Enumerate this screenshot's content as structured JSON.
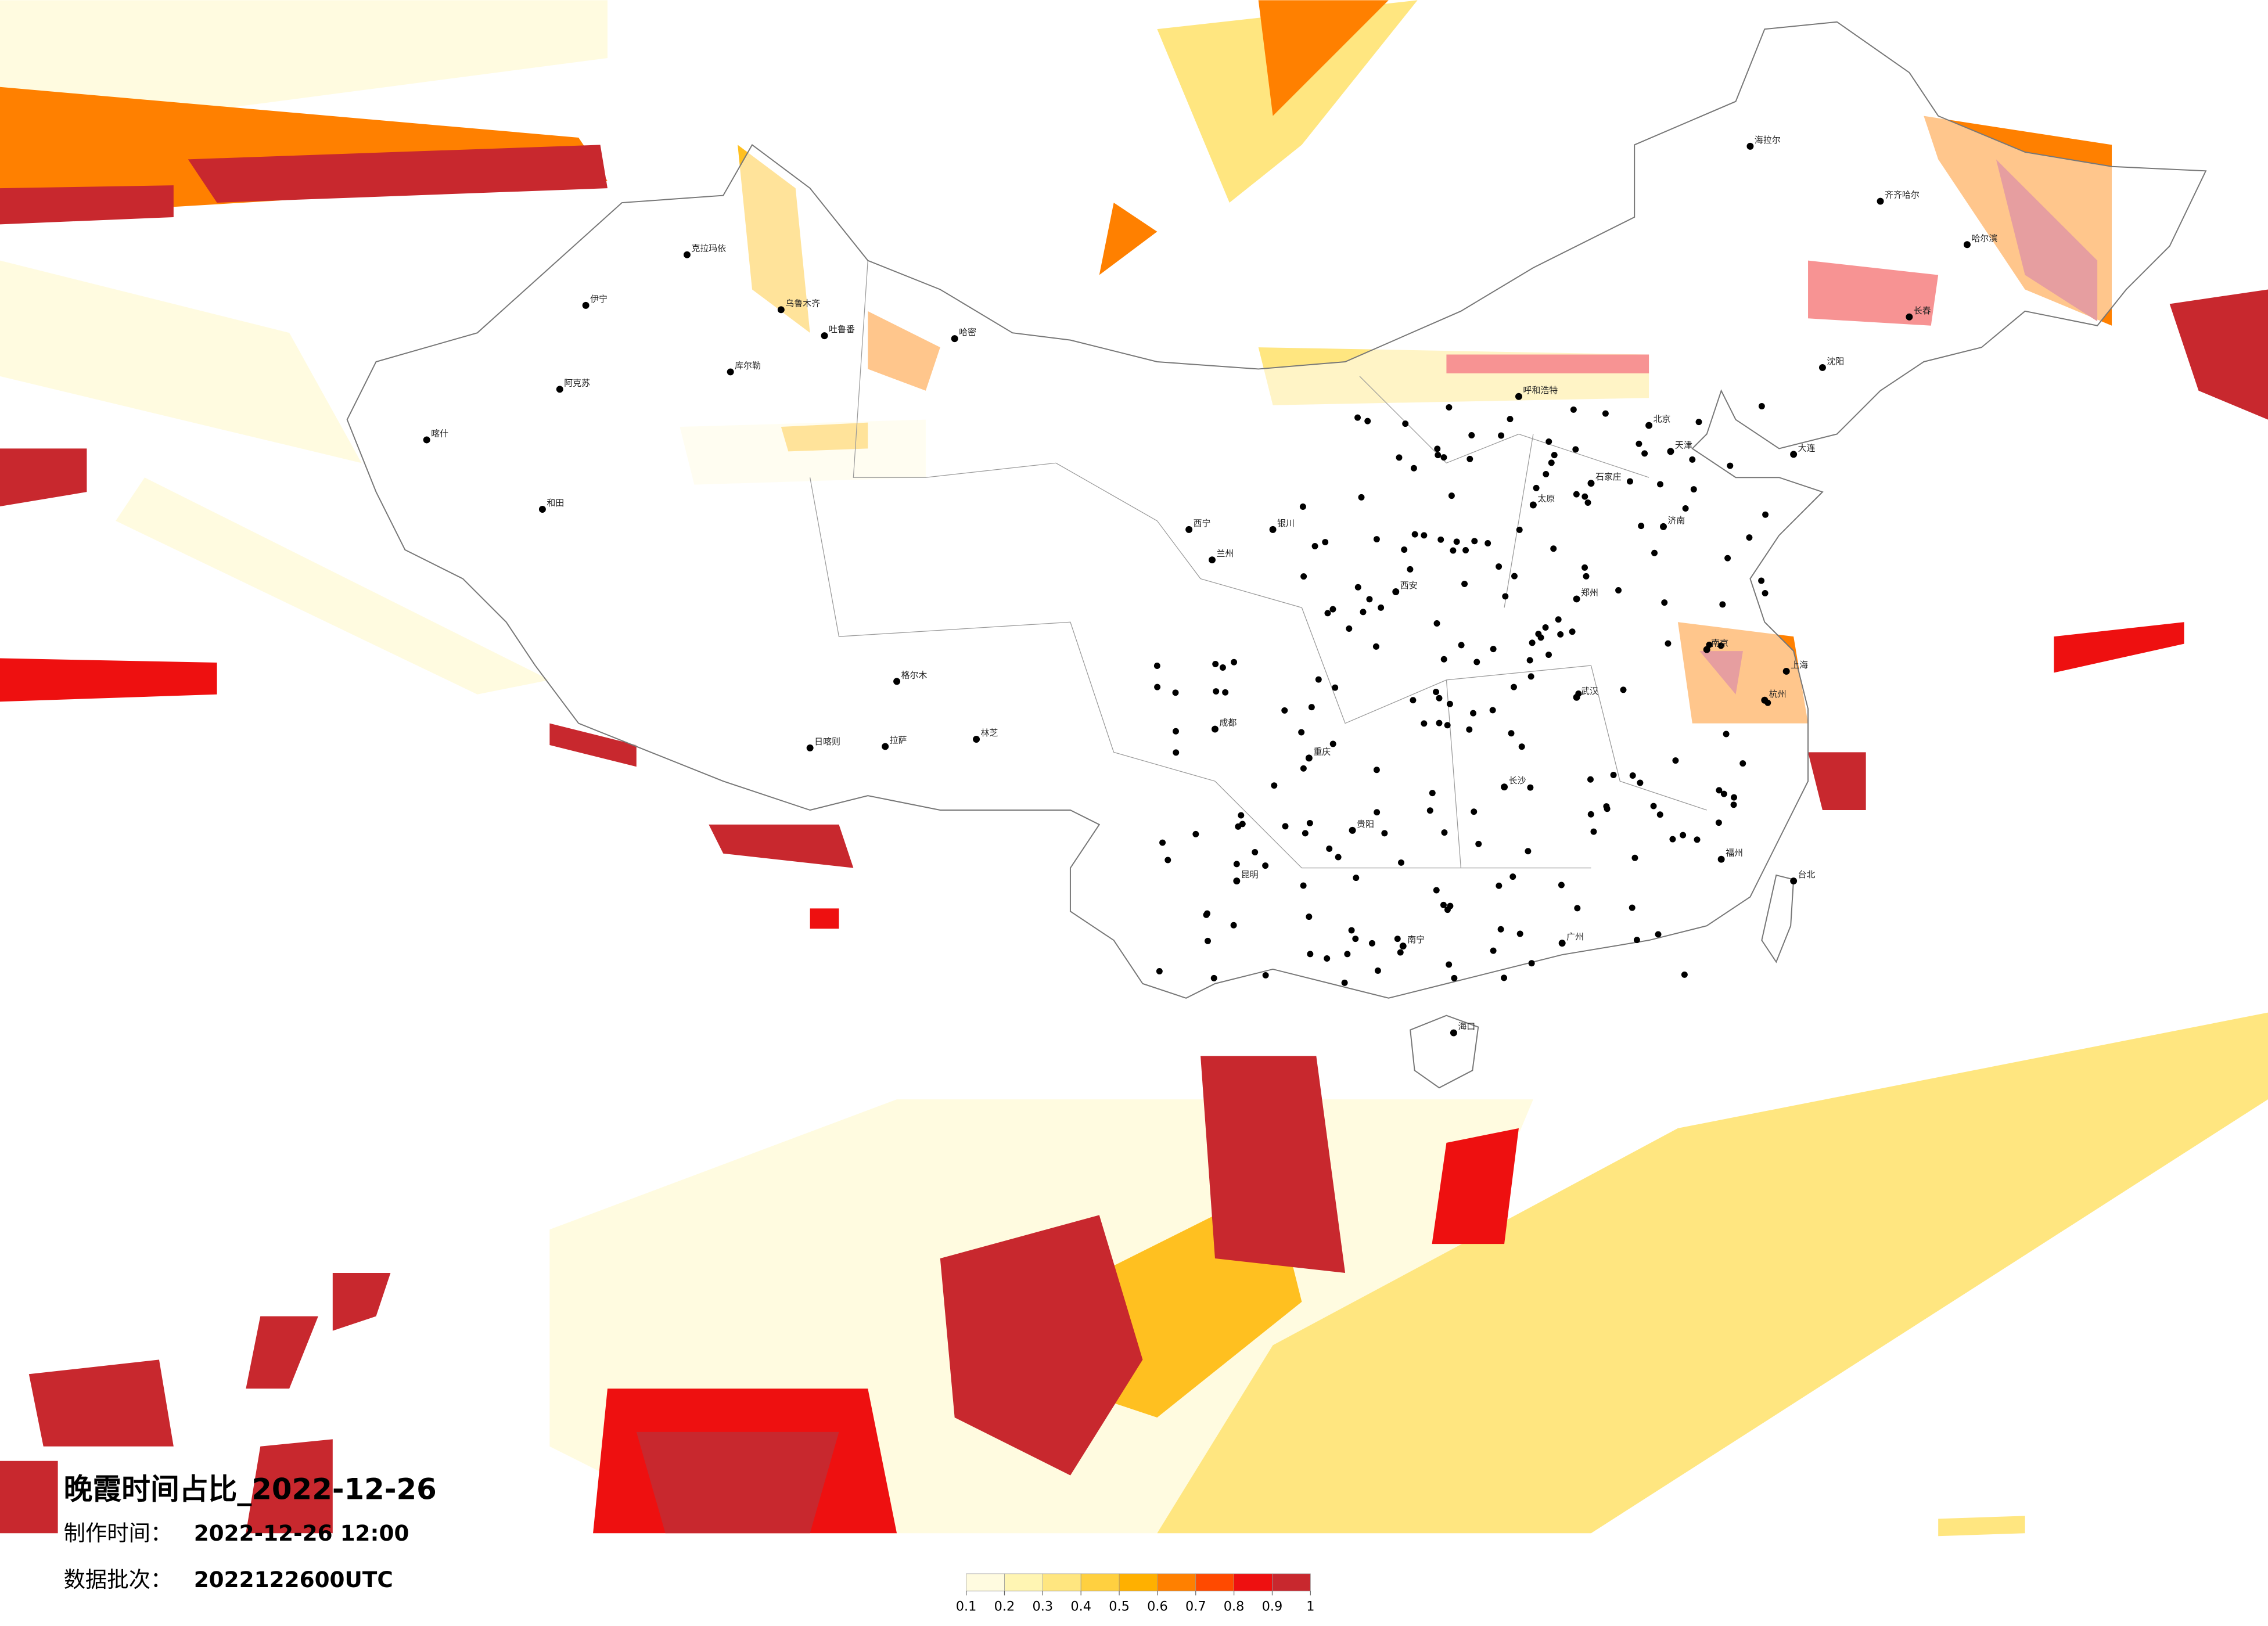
{
  "title": "晚霞时间占比_2022-12-26",
  "made_time": {
    "label": "制作时间：",
    "value": "2022-12-26 12:00"
  },
  "data_batch": {
    "label": "数据批次：",
    "value": "2022122600UTC"
  },
  "colorbar": {
    "ticks": [
      0.1,
      0.2,
      0.3,
      0.4,
      0.5,
      0.6,
      0.7,
      0.8,
      0.9,
      1
    ],
    "colors": [
      "#fffbe0",
      "#fff5b3",
      "#ffe680",
      "#ffd040",
      "#ffb000",
      "#ff8000",
      "#ff4a00",
      "#ee1010",
      "#c8282e"
    ]
  },
  "cities": [
    "伊宁",
    "阿克苏",
    "喀什",
    "和田",
    "克拉玛依",
    "库尔勒",
    "乌鲁木齐",
    "吐鲁番",
    "哈密",
    "格尔木",
    "拉萨",
    "日喀则",
    "林芝",
    "西宁",
    "兰州",
    "银川",
    "呼和浩特",
    "北京",
    "天津",
    "石家庄",
    "太原",
    "郑州",
    "西安",
    "成都",
    "重庆",
    "贵阳",
    "昆明",
    "南宁",
    "广州",
    "长沙",
    "武汉",
    "南京",
    "上海",
    "杭州",
    "福州",
    "济南",
    "沈阳",
    "长春",
    "哈尔滨",
    "海拉尔",
    "齐齐哈尔",
    "大连",
    "台北",
    "海口"
  ]
}
